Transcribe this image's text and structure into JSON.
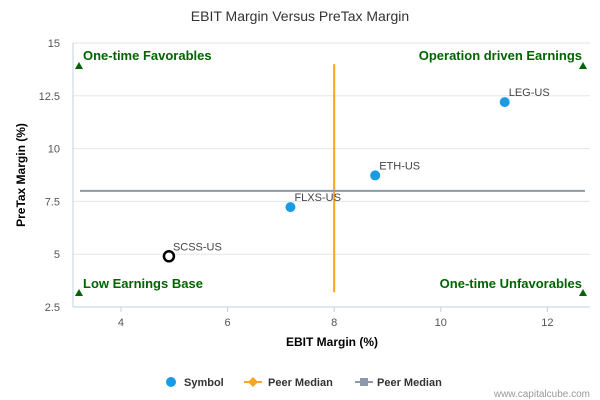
{
  "chart_data": {
    "type": "scatter",
    "title": "EBIT Margin Versus PreTax Margin",
    "xlabel": "EBIT Margin (%)",
    "ylabel": "PreTax Margin (%)",
    "xlim": [
      3.1,
      12.8
    ],
    "ylim": [
      2.5,
      15
    ],
    "xticks": [
      "4",
      "6",
      "8",
      "10",
      "12"
    ],
    "yticks": [
      "2.5",
      "5",
      "7.5",
      "10",
      "12.5",
      "15"
    ],
    "points": [
      {
        "label": "LEG-US",
        "x": 11.2,
        "y": 12.2,
        "style": "filled"
      },
      {
        "label": "ETH-US",
        "x": 8.77,
        "y": 8.73,
        "style": "filled"
      },
      {
        "label": "FLXS-US",
        "x": 7.18,
        "y": 7.23,
        "style": "filled"
      },
      {
        "label": "SCSS-US",
        "x": 4.9,
        "y": 4.9,
        "style": "hollow"
      }
    ],
    "peer_median_x": 8.0,
    "peer_median_y": 8.0,
    "quadrant_labels": {
      "top_left": "One-time Favorables",
      "top_right": "Operation driven Earnings",
      "bottom_left": "Low Earnings Base",
      "bottom_right": "One-time Unfavorables"
    },
    "legend": [
      {
        "name": "Symbol",
        "color": "#1a9be6",
        "marker": "circle"
      },
      {
        "name": "Peer Median",
        "color": "#f5a623",
        "marker": "diamond"
      },
      {
        "name": "Peer Median",
        "color": "#8f98a8",
        "marker": "square"
      }
    ],
    "colors": {
      "point": "#1a9be6",
      "vline": "#f5a623",
      "hline": "#8f98a8",
      "quadrant": "#006400",
      "axis": "#c0d0e0"
    }
  },
  "credit": "www.capitalcube.com"
}
